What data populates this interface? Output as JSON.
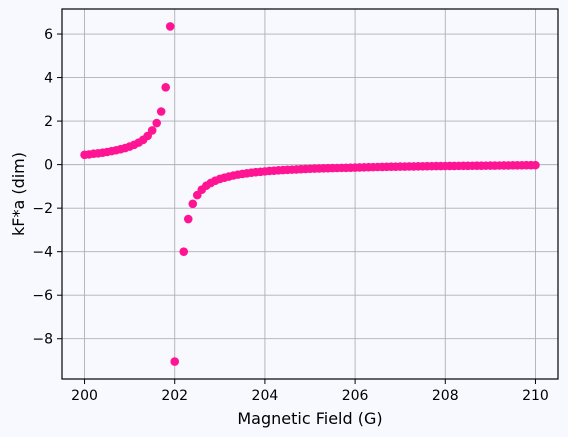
{
  "chart_data": {
    "type": "scatter",
    "title": "",
    "xlabel": "Magnetic Field (G)",
    "ylabel": "kF*a (dim)",
    "xlim": [
      199.5,
      210.5
    ],
    "ylim": [
      -9.85,
      7.15
    ],
    "x_ticks": [
      200,
      202,
      204,
      206,
      208,
      210
    ],
    "y_ticks": [
      -8,
      -6,
      -4,
      -2,
      0,
      2,
      4,
      6
    ],
    "x_tick_labels": [
      "200",
      "202",
      "204",
      "206",
      "208",
      "210"
    ],
    "y_tick_labels": [
      "−8",
      "−6",
      "−4",
      "−2",
      "0",
      "2",
      "4",
      "6"
    ],
    "grid": true,
    "legend": "none",
    "colors": {
      "marker": "#ff1493",
      "grid": "#b0b0b0",
      "axes": "#000000",
      "background": "#f8f9ff"
    },
    "series": [
      {
        "x": [
          200.0,
          200.1,
          200.2,
          200.3,
          200.4,
          200.5,
          200.6,
          200.7,
          200.8,
          200.9,
          201.0,
          201.1,
          201.2,
          201.3,
          201.4,
          201.5,
          201.6,
          201.7,
          201.8,
          201.9,
          202.0,
          202.2,
          202.3,
          202.4,
          202.5,
          202.6,
          202.7,
          202.8,
          202.9,
          203.0,
          203.1,
          203.2,
          203.3,
          203.4,
          203.5,
          203.6,
          203.7,
          203.8,
          203.9,
          204.0,
          204.1,
          204.2,
          204.3,
          204.4,
          204.5,
          204.6,
          204.7,
          204.8,
          204.9,
          205.0,
          205.1,
          205.2,
          205.3,
          205.4,
          205.5,
          205.6,
          205.7,
          205.8,
          205.9,
          206.0,
          206.1,
          206.2,
          206.3,
          206.4,
          206.5,
          206.6,
          206.7,
          206.8,
          206.9,
          207.0,
          207.1,
          207.2,
          207.3,
          207.4,
          207.5,
          207.6,
          207.7,
          207.8,
          207.9,
          208.0,
          208.1,
          208.2,
          208.3,
          208.4,
          208.5,
          208.6,
          208.7,
          208.8,
          208.9,
          209.0,
          209.1,
          209.2,
          209.3,
          209.4,
          209.5,
          209.6,
          209.7,
          209.8,
          209.9,
          210.0
        ],
        "y": [
          0.45,
          0.47,
          0.5,
          0.52,
          0.55,
          0.58,
          0.62,
          0.66,
          0.71,
          0.76,
          0.83,
          0.91,
          1.01,
          1.14,
          1.32,
          1.57,
          1.91,
          2.44,
          3.55,
          6.35,
          -9.05,
          -4.0,
          -2.5,
          -1.8,
          -1.4,
          -1.15,
          -0.97,
          -0.84,
          -0.74,
          -0.66,
          -0.6,
          -0.55,
          -0.5,
          -0.46,
          -0.43,
          -0.4,
          -0.37,
          -0.35,
          -0.33,
          -0.31,
          -0.29,
          -0.28,
          -0.26,
          -0.25,
          -0.24,
          -0.23,
          -0.22,
          -0.21,
          -0.2,
          -0.19,
          -0.18,
          -0.175,
          -0.17,
          -0.165,
          -0.16,
          -0.155,
          -0.15,
          -0.145,
          -0.14,
          -0.135,
          -0.13,
          -0.125,
          -0.12,
          -0.115,
          -0.11,
          -0.105,
          -0.1,
          -0.097,
          -0.094,
          -0.091,
          -0.088,
          -0.085,
          -0.082,
          -0.079,
          -0.076,
          -0.073,
          -0.07,
          -0.068,
          -0.066,
          -0.064,
          -0.062,
          -0.06,
          -0.058,
          -0.056,
          -0.054,
          -0.052,
          -0.05,
          -0.048,
          -0.046,
          -0.044,
          -0.042,
          -0.04,
          -0.038,
          -0.036,
          -0.034,
          -0.032,
          -0.03,
          -0.028,
          -0.026,
          -0.024
        ]
      }
    ]
  }
}
